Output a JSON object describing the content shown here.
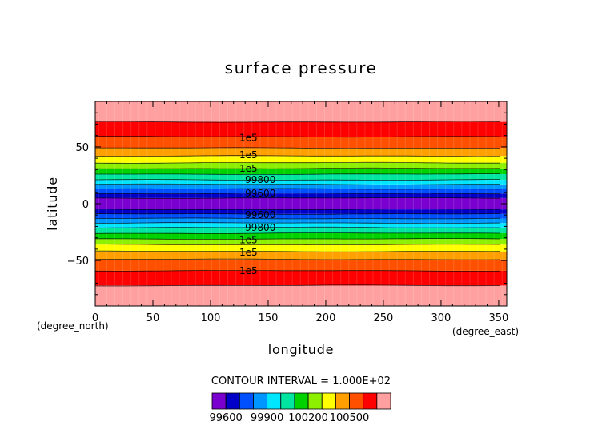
{
  "chart_data": {
    "type": "heatmap",
    "title": "surface pressure",
    "xlabel": "longitude",
    "ylabel": "latitude",
    "x_unit": "(degree_east)",
    "y_unit": "(degree_north)",
    "xlim": [
      0,
      357
    ],
    "ylim": [
      -90,
      90
    ],
    "x_ticks": [
      0,
      50,
      100,
      150,
      200,
      250,
      300,
      350
    ],
    "y_ticks": [
      -50,
      0,
      50
    ],
    "y_tick_labels": [
      "−50",
      "0",
      "50"
    ],
    "grid": false,
    "contour_interval_text": "CONTOUR INTERVAL = 1.000E+02",
    "colorbar": {
      "colors": [
        "#7a00d0",
        "#0000c8",
        "#0050ff",
        "#0096ff",
        "#00e6ff",
        "#00e6a0",
        "#00d200",
        "#8cf000",
        "#ffff00",
        "#ffa000",
        "#ff5000",
        "#ff0000",
        "#ffa0a0"
      ],
      "tick_labels": [
        "99600",
        "99900",
        "100200",
        "100500"
      ],
      "tick_positions": [
        1,
        4,
        7,
        10
      ]
    },
    "bands": [
      {
        "lat_min": -90,
        "lat_max": -72,
        "color": "#ffa0a0"
      },
      {
        "lat_min": -72,
        "lat_max": -59,
        "color": "#ff0000"
      },
      {
        "lat_min": -59,
        "lat_max": -49,
        "color": "#ff5000"
      },
      {
        "lat_min": -49,
        "lat_max": -42,
        "color": "#ffa000"
      },
      {
        "lat_min": -42,
        "lat_max": -36,
        "color": "#ffff00"
      },
      {
        "lat_min": -36,
        "lat_max": -31,
        "color": "#8cf000"
      },
      {
        "lat_min": -31,
        "lat_max": -26,
        "color": "#00d200"
      },
      {
        "lat_min": -26,
        "lat_max": -21,
        "color": "#00e6a0"
      },
      {
        "lat_min": -21,
        "lat_max": -17,
        "color": "#00e6ff"
      },
      {
        "lat_min": -17,
        "lat_max": -13,
        "color": "#0096ff"
      },
      {
        "lat_min": -13,
        "lat_max": -9,
        "color": "#0050ff"
      },
      {
        "lat_min": -9,
        "lat_max": -5,
        "color": "#0000c8"
      },
      {
        "lat_min": -5,
        "lat_max": 5,
        "color": "#7a00d0"
      },
      {
        "lat_min": 5,
        "lat_max": 9,
        "color": "#0000c8"
      },
      {
        "lat_min": 9,
        "lat_max": 13,
        "color": "#0050ff"
      },
      {
        "lat_min": 13,
        "lat_max": 17,
        "color": "#0096ff"
      },
      {
        "lat_min": 17,
        "lat_max": 21,
        "color": "#00e6ff"
      },
      {
        "lat_min": 21,
        "lat_max": 26,
        "color": "#00e6a0"
      },
      {
        "lat_min": 26,
        "lat_max": 31,
        "color": "#00d200"
      },
      {
        "lat_min": 31,
        "lat_max": 36,
        "color": "#8cf000"
      },
      {
        "lat_min": 36,
        "lat_max": 42,
        "color": "#ffff00"
      },
      {
        "lat_min": 42,
        "lat_max": 49,
        "color": "#ffa000"
      },
      {
        "lat_min": 49,
        "lat_max": 59,
        "color": "#ff5000"
      },
      {
        "lat_min": 59,
        "lat_max": 72,
        "color": "#ff0000"
      },
      {
        "lat_min": 72,
        "lat_max": 90,
        "color": "#ffa0a0"
      }
    ],
    "contour_labels": [
      {
        "text": "1e5",
        "lon": 125,
        "lat": 58
      },
      {
        "text": "1e5",
        "lon": 125,
        "lat": 43
      },
      {
        "text": "1e5",
        "lon": 125,
        "lat": 31
      },
      {
        "text": "99800",
        "lon": 130,
        "lat": 21
      },
      {
        "text": "99600",
        "lon": 130,
        "lat": 9
      },
      {
        "text": "99600",
        "lon": 130,
        "lat": -10
      },
      {
        "text": "99800",
        "lon": 130,
        "lat": -21
      },
      {
        "text": "1e5",
        "lon": 125,
        "lat": -32
      },
      {
        "text": "1e5",
        "lon": 125,
        "lat": -43
      },
      {
        "text": "1e5",
        "lon": 125,
        "lat": -59
      }
    ]
  }
}
